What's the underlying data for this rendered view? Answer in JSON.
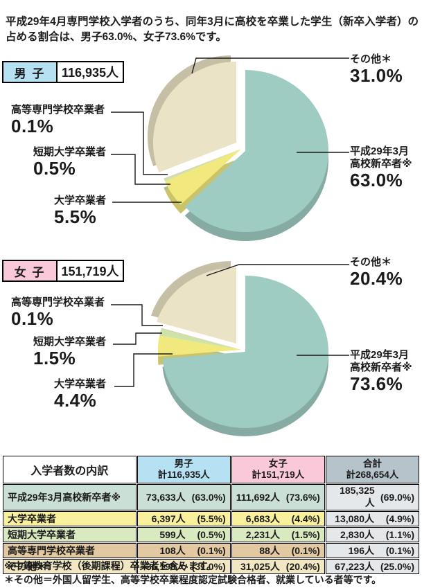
{
  "intro": "平成29年4月専門学校入学者のうち、同年3月に高校を卒業した学生（新卒入学者）の占める割合は、男子63.0%、女子73.6%です。",
  "male": {
    "gender_label": "男 子",
    "total": "116,935人",
    "callouts": {
      "kosen": {
        "name": "高等専門学校卒業者",
        "pct": "0.1%"
      },
      "tandai": {
        "name": "短期大学卒業者",
        "pct": "0.5%"
      },
      "daigaku": {
        "name": "大学卒業者",
        "pct": "5.5%"
      },
      "sonota": {
        "name": "その他＊",
        "pct": "31.0%"
      },
      "shinsotsu": {
        "name1": "平成29年3月",
        "name2": "高校新卒者※",
        "pct": "63.0%"
      }
    }
  },
  "female": {
    "gender_label": "女 子",
    "total": "151,719人",
    "callouts": {
      "kosen": {
        "name": "高等専門学校卒業者",
        "pct": "0.1%"
      },
      "tandai": {
        "name": "短期大学卒業者",
        "pct": "1.5%"
      },
      "daigaku": {
        "name": "大学卒業者",
        "pct": "4.4%"
      },
      "sonota": {
        "name": "その他＊",
        "pct": "20.4%"
      },
      "shinsotsu": {
        "name1": "平成29年3月",
        "name2": "高校新卒者※",
        "pct": "73.6%"
      }
    }
  },
  "chart_data": [
    {
      "type": "pie",
      "title": "男子",
      "total_label": "116,935人",
      "start_angle_deg": -90,
      "clockwise": true,
      "unit": "%",
      "slices": [
        {
          "label": "平成29年3月高校新卒者※",
          "value": 63.0,
          "color": "#9fccc2",
          "explode": [
            6,
            3
          ],
          "shadow": [
            6,
            16
          ]
        },
        {
          "label": "大学卒業者",
          "value": 5.5,
          "color": "#f1e87e"
        },
        {
          "label": "短期大学卒業者",
          "value": 0.5,
          "color": "#cde3a8"
        },
        {
          "label": "高等専門学校卒業者",
          "value": 0.1,
          "color": "#e3b2a5"
        },
        {
          "label": "その他＊",
          "value": 31.0,
          "color": "#ebe3c6",
          "explode": [
            -7,
            -9
          ],
          "shadow": [
            -15,
            -18
          ]
        }
      ]
    },
    {
      "type": "pie",
      "title": "女子",
      "total_label": "151,719人",
      "start_angle_deg": -90,
      "clockwise": true,
      "unit": "%",
      "slices": [
        {
          "label": "平成29年3月高校新卒者※",
          "value": 73.6,
          "color": "#9fccc2",
          "explode": [
            6,
            3
          ],
          "shadow": [
            6,
            15
          ]
        },
        {
          "label": "大学卒業者",
          "value": 4.4,
          "color": "#f1e87e"
        },
        {
          "label": "短期大学卒業者",
          "value": 1.5,
          "color": "#cde3a8"
        },
        {
          "label": "高等専門学校卒業者",
          "value": 0.1,
          "color": "#e3b2a5"
        },
        {
          "label": "その他＊",
          "value": 20.4,
          "color": "#ebe3c6",
          "explode": [
            -7,
            -9
          ],
          "shadow": [
            -15,
            -18
          ]
        }
      ]
    }
  ],
  "table": {
    "title_cell": "入学者数の内訳",
    "columns": [
      {
        "title": "男子",
        "total": "計116,935人"
      },
      {
        "title": "女子",
        "total": "計151,719人"
      },
      {
        "title": "合計",
        "total": "計268,654人"
      }
    ],
    "rows": [
      {
        "label": "平成29年3月高校新卒者※",
        "male_count": "73,633人",
        "male_pct": "(63.0%)",
        "female_count": "111,692人",
        "female_pct": "(73.6%)",
        "total_count": "185,325人",
        "total_pct": "(69.0%)"
      },
      {
        "label": "大学卒業者",
        "male_count": "6,397人",
        "male_pct": "(5.5%)",
        "female_count": "6,683人",
        "female_pct": "(4.4%)",
        "total_count": "13,080人",
        "total_pct": "(4.9%)"
      },
      {
        "label": "短期大学卒業者",
        "male_count": "599人",
        "male_pct": "(0.5%)",
        "female_count": "2,231人",
        "female_pct": "(1.5%)",
        "total_count": "2,830人",
        "total_pct": "(1.1%)"
      },
      {
        "label": "高等専門学校卒業者",
        "male_count": "108人",
        "male_pct": "(0.1%)",
        "female_count": "88人",
        "female_pct": "(0.1%)",
        "total_count": "196人",
        "total_pct": "(0.1%)"
      },
      {
        "label": "その他＊",
        "male_count": "36,198人",
        "male_pct": "(31.0%)",
        "female_count": "31,025人",
        "female_pct": "(20.4%)",
        "total_count": "67,223人",
        "total_pct": "(25.0%)"
      }
    ]
  },
  "footnotes": [
    "※中等教育学校（後期課程）卒業者を含みます。",
    "＊その他＝外国人留学生、高等学校卒業程度認定試験合格者、就業している者等です。"
  ]
}
